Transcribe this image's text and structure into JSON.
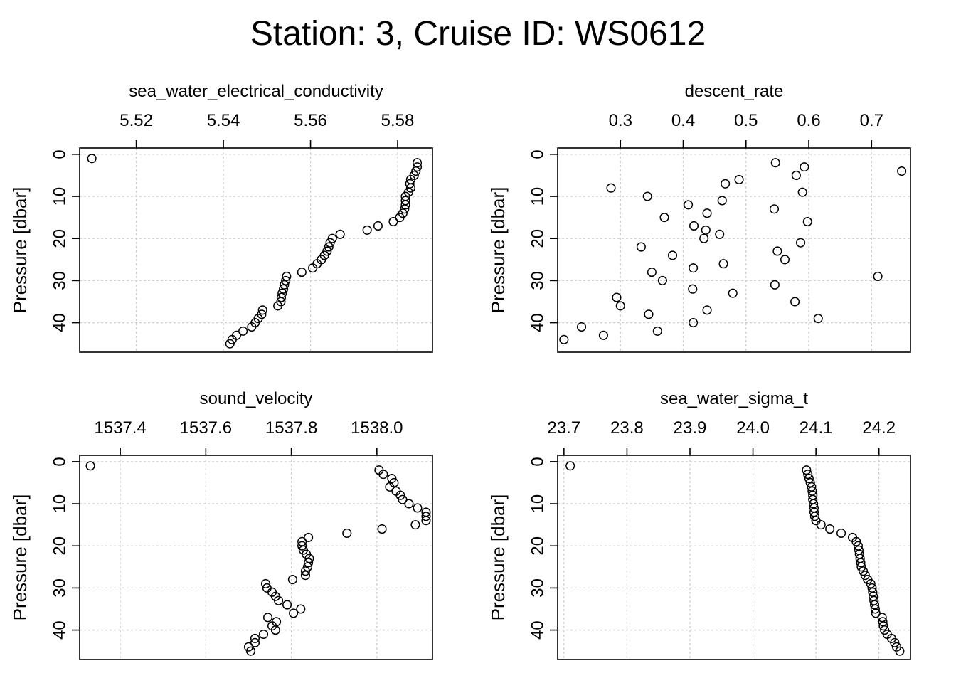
{
  "title": "Station: 3, Cruise ID: WS0612",
  "chart_data": [
    {
      "type": "scatter",
      "title": "sea_water_electrical_conductivity",
      "ylabel": "Pressure [dbar]",
      "xlim": [
        5.507,
        5.588
      ],
      "ylim": [
        -1.5,
        47
      ],
      "xticks": [
        5.52,
        5.54,
        5.56,
        5.58
      ],
      "xtick_labels": [
        "5.52",
        "5.54",
        "5.56",
        "5.58"
      ],
      "yticks": [
        0,
        10,
        20,
        30,
        40
      ],
      "ytick_labels": [
        "0",
        "10",
        "20",
        "30",
        "40"
      ],
      "grid": true,
      "x": [
        5.5098,
        5.5845,
        5.5845,
        5.5842,
        5.5838,
        5.583,
        5.5828,
        5.583,
        5.5825,
        5.5818,
        5.5818,
        5.5818,
        5.5816,
        5.5812,
        5.5805,
        5.579,
        5.5755,
        5.573,
        5.5668,
        5.565,
        5.5645,
        5.5642,
        5.5638,
        5.5632,
        5.5625,
        5.5615,
        5.5605,
        5.558,
        5.5545,
        5.5543,
        5.554,
        5.5538,
        5.5535,
        5.5533,
        5.5532,
        5.5525,
        5.549,
        5.5488,
        5.548,
        5.5473,
        5.5465,
        5.5445,
        5.543,
        5.542,
        5.5415
      ],
      "y": [
        1,
        2,
        3,
        4,
        5,
        6,
        7,
        8,
        9,
        10,
        11,
        12,
        13,
        14,
        15,
        16,
        17,
        18,
        19,
        20,
        21,
        22,
        23,
        24,
        25,
        26,
        27,
        28,
        29,
        30,
        31,
        32,
        33,
        34,
        35,
        36,
        37,
        38,
        39,
        40,
        41,
        42,
        43,
        44,
        45
      ]
    },
    {
      "type": "scatter",
      "title": "descent_rate",
      "ylabel": "Pressure [dbar]",
      "xlim": [
        0.2,
        0.762
      ],
      "ylim": [
        -1.5,
        47
      ],
      "xticks": [
        0.3,
        0.4,
        0.5,
        0.6,
        0.7
      ],
      "xtick_labels": [
        "0.3",
        "0.4",
        "0.5",
        "0.6",
        "0.7"
      ],
      "yticks": [
        0,
        10,
        20,
        30,
        40
      ],
      "ytick_labels": [
        "0",
        "10",
        "20",
        "30",
        "40"
      ],
      "grid": true,
      "x": [
        0.547,
        0.593,
        0.748,
        0.58,
        0.489,
        0.467,
        0.285,
        0.59,
        0.343,
        0.462,
        0.408,
        0.545,
        0.438,
        0.598,
        0.37,
        0.417,
        0.436,
        0.458,
        0.433,
        0.587,
        0.333,
        0.55,
        0.383,
        0.562,
        0.464,
        0.416,
        0.35,
        0.71,
        0.367,
        0.546,
        0.415,
        0.479,
        0.294,
        0.578,
        0.3,
        0.438,
        0.345,
        0.615,
        0.416,
        0.238,
        0.359,
        0.273,
        0.21
      ],
      "y": [
        2,
        3,
        4,
        5,
        6,
        7,
        8,
        9,
        10,
        11,
        12,
        13,
        14,
        16,
        15,
        17,
        18,
        19,
        20,
        21,
        22,
        23,
        24,
        25,
        26,
        27,
        28,
        29,
        30,
        31,
        32,
        33,
        34,
        35,
        36,
        37,
        38,
        39,
        40,
        41,
        42,
        43,
        44
      ]
    },
    {
      "type": "scatter",
      "title": "sound_velocity",
      "ylabel": "Pressure [dbar]",
      "xlim": [
        1537.305,
        1538.13
      ],
      "ylim": [
        -1.5,
        47
      ],
      "xticks": [
        1537.4,
        1537.6,
        1537.8,
        1538.0
      ],
      "xtick_labels": [
        "1537.4",
        "1537.6",
        "1537.8",
        "1538.0"
      ],
      "yticks": [
        0,
        10,
        20,
        30,
        40
      ],
      "ytick_labels": [
        "0",
        "10",
        "20",
        "30",
        "40"
      ],
      "grid": true,
      "x": [
        1537.33,
        1538.005,
        1538.015,
        1538.035,
        1538.04,
        1538.03,
        1538.045,
        1538.055,
        1538.06,
        1538.075,
        1538.095,
        1538.115,
        1538.115,
        1538.115,
        1538.09,
        1538.012,
        1537.93,
        1537.84,
        1537.825,
        1537.825,
        1537.828,
        1537.835,
        1537.842,
        1537.84,
        1537.838,
        1537.833,
        1537.833,
        1537.803,
        1537.74,
        1537.743,
        1537.755,
        1537.763,
        1537.77,
        1537.79,
        1537.822,
        1537.805,
        1537.745,
        1537.765,
        1537.755,
        1537.763,
        1537.735,
        1537.715,
        1537.715,
        1537.7,
        1537.705
      ],
      "y": [
        1,
        2,
        3,
        4,
        5,
        6,
        7,
        8,
        9,
        10,
        11,
        12,
        13,
        14,
        15,
        16,
        17,
        18,
        19,
        20,
        21,
        22,
        23,
        24,
        25,
        26,
        27,
        28,
        29,
        30,
        31,
        32,
        33,
        34,
        35,
        36,
        37,
        38,
        39,
        40,
        41,
        42,
        43,
        44,
        45
      ]
    },
    {
      "type": "scatter",
      "title": "sea_water_sigma_t",
      "ylabel": "Pressure [dbar]",
      "xlim": [
        23.69,
        24.25
      ],
      "ylim": [
        -1.5,
        47
      ],
      "xticks": [
        23.7,
        23.8,
        23.9,
        24.0,
        24.1,
        24.2
      ],
      "xtick_labels": [
        "23.7",
        "23.8",
        "23.9",
        "24.0",
        "24.1",
        "24.2"
      ],
      "yticks": [
        0,
        10,
        20,
        30,
        40
      ],
      "ytick_labels": [
        "0",
        "10",
        "20",
        "30",
        "40"
      ],
      "grid": true,
      "x": [
        23.71,
        24.085,
        24.087,
        24.089,
        24.091,
        24.093,
        24.094,
        24.095,
        24.095,
        24.096,
        24.097,
        24.097,
        24.098,
        24.1,
        24.108,
        24.122,
        24.14,
        24.158,
        24.164,
        24.167,
        24.168,
        24.169,
        24.17,
        24.171,
        24.172,
        24.175,
        24.178,
        24.182,
        24.187,
        24.189,
        24.19,
        24.191,
        24.192,
        24.193,
        24.194,
        24.195,
        24.205,
        24.206,
        24.207,
        24.209,
        24.213,
        24.22,
        24.225,
        24.228,
        24.233
      ],
      "y": [
        1,
        2,
        3,
        4,
        5,
        6,
        7,
        8,
        9,
        10,
        11,
        12,
        13,
        14,
        15,
        16,
        17,
        18,
        19,
        20,
        21,
        22,
        23,
        24,
        25,
        26,
        27,
        28,
        29,
        30,
        31,
        32,
        33,
        34,
        35,
        36,
        37,
        38,
        39,
        40,
        41,
        42,
        43,
        44,
        45
      ]
    }
  ]
}
